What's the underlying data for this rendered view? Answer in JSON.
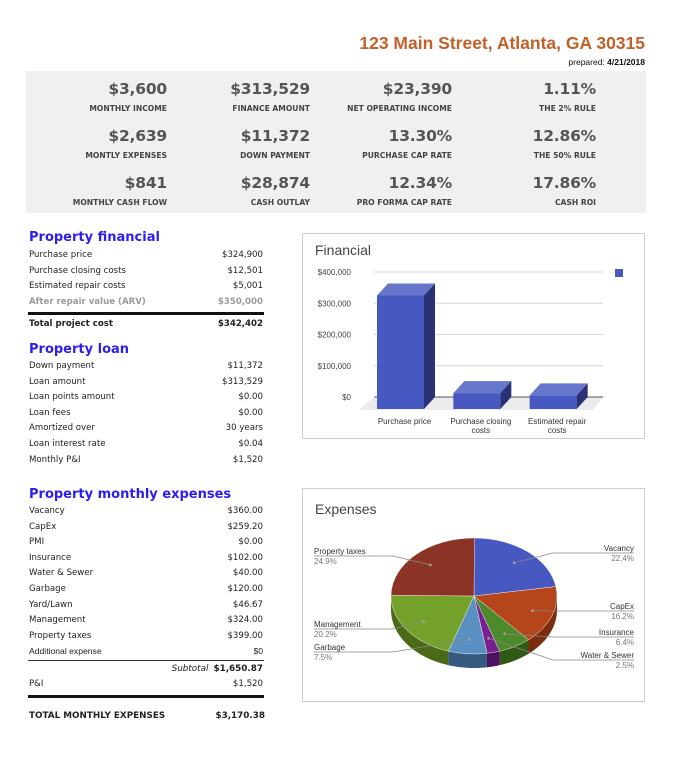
{
  "header": {
    "address": "123 Main Street, Atlanta, GA 30315",
    "prepared_label": "prepared:",
    "prepared_date": "4/21/2018"
  },
  "summary": {
    "metrics": [
      {
        "value": "$3,600",
        "label": "MONTHLY INCOME"
      },
      {
        "value": "$313,529",
        "label": "FINANCE AMOUNT"
      },
      {
        "value": "$23,390",
        "label": "NET OPERATING INCOME"
      },
      {
        "value": "1.11%",
        "label": "THE 2% RULE"
      },
      {
        "value": "$2,639",
        "label": "MONTLY EXPENSES"
      },
      {
        "value": "$11,372",
        "label": "DOWN PAYMENT"
      },
      {
        "value": "13.30%",
        "label": "PURCHASE CAP RATE"
      },
      {
        "value": "12.86%",
        "label": "THE 50% RULE"
      },
      {
        "value": "$841",
        "label": "MONTHLY CASH FLOW"
      },
      {
        "value": "$28,874",
        "label": "CASH OUTLAY"
      },
      {
        "value": "12.34%",
        "label": "PRO FORMA CAP RATE"
      },
      {
        "value": "17.86%",
        "label": "CASH ROI"
      }
    ]
  },
  "property_financial": {
    "title": "Property financial",
    "rows": [
      {
        "label": "Purchase price",
        "value": "$324,900"
      },
      {
        "label": "Purchase closing costs",
        "value": "$12,501"
      },
      {
        "label": "Estimated repair costs",
        "value": "$5,001"
      },
      {
        "label": "After repair value (ARV)",
        "value": "$350,000"
      }
    ],
    "total": {
      "label": "Total project cost",
      "value": "$342,402"
    }
  },
  "property_loan": {
    "title": "Property loan",
    "rows": [
      {
        "label": "Down payment",
        "value": "$11,372"
      },
      {
        "label": "Loan amount",
        "value": "$313,529"
      },
      {
        "label": "Loan points amount",
        "value": "$0.00"
      },
      {
        "label": "Loan fees",
        "value": "$0.00"
      },
      {
        "label": "Amortized over",
        "value": "30 years"
      },
      {
        "label": "Loan interest rate",
        "value": "$0.04"
      },
      {
        "label": "Monthly P&I",
        "value": "$1,520"
      }
    ]
  },
  "monthly_expenses": {
    "title": "Property monthly expenses",
    "rows": [
      {
        "label": "Vacancy",
        "value": "$360.00"
      },
      {
        "label": "CapEx",
        "value": "$259.20"
      },
      {
        "label": "PMI",
        "value": "$0.00"
      },
      {
        "label": "Insurance",
        "value": "$102.00"
      },
      {
        "label": "Water & Sewer",
        "value": "$40.00"
      },
      {
        "label": "Garbage",
        "value": "$120.00"
      },
      {
        "label": "Yard/Lawn",
        "value": "$46.67"
      },
      {
        "label": "Management",
        "value": "$324.00"
      },
      {
        "label": "Property taxes",
        "value": "$399.00"
      },
      {
        "label": "Additional expense",
        "value": "$0"
      }
    ],
    "subtotal_label": "Subtotal",
    "subtotal_value": "$1,650.87",
    "pi": {
      "label": "P&I",
      "value": "$1,520"
    },
    "total": {
      "label": "TOTAL MONTHLY EXPENSES",
      "value": "$3,170.38"
    }
  },
  "chart_data": [
    {
      "type": "bar",
      "title": "Financial",
      "categories": [
        "Purchase price",
        "Purchase closing costs",
        "Estimated repair costs"
      ],
      "values": [
        324900,
        12501,
        5001
      ],
      "ylim": [
        0,
        400000
      ],
      "yticks": [
        0,
        100000,
        200000,
        300000,
        400000
      ],
      "ytick_labels": [
        "$0",
        "$100,000",
        "$200,000",
        "$300,000",
        "$400,000"
      ],
      "xlabel": "",
      "ylabel": "",
      "grid": true,
      "legend": "top-right",
      "color": "#4758c0",
      "style": "3d"
    },
    {
      "type": "pie",
      "title": "Expenses",
      "style": "3d",
      "slices": [
        {
          "label": "Vacancy",
          "percent": 22.4,
          "color": "#4758c0"
        },
        {
          "label": "CapEx",
          "percent": 16.2,
          "color": "#b5461b"
        },
        {
          "label": "Insurance",
          "percent": 6.4,
          "color": "#4d8a2b"
        },
        {
          "label": "Water & Sewer",
          "percent": 2.5,
          "color": "#7a1f8f"
        },
        {
          "label": "Garbage",
          "percent": 7.5,
          "color": "#5a8fc2"
        },
        {
          "label": "Management",
          "percent": 20.2,
          "color": "#74a12a"
        },
        {
          "label": "Property taxes",
          "percent": 24.9,
          "color": "#8b3325"
        }
      ]
    }
  ]
}
